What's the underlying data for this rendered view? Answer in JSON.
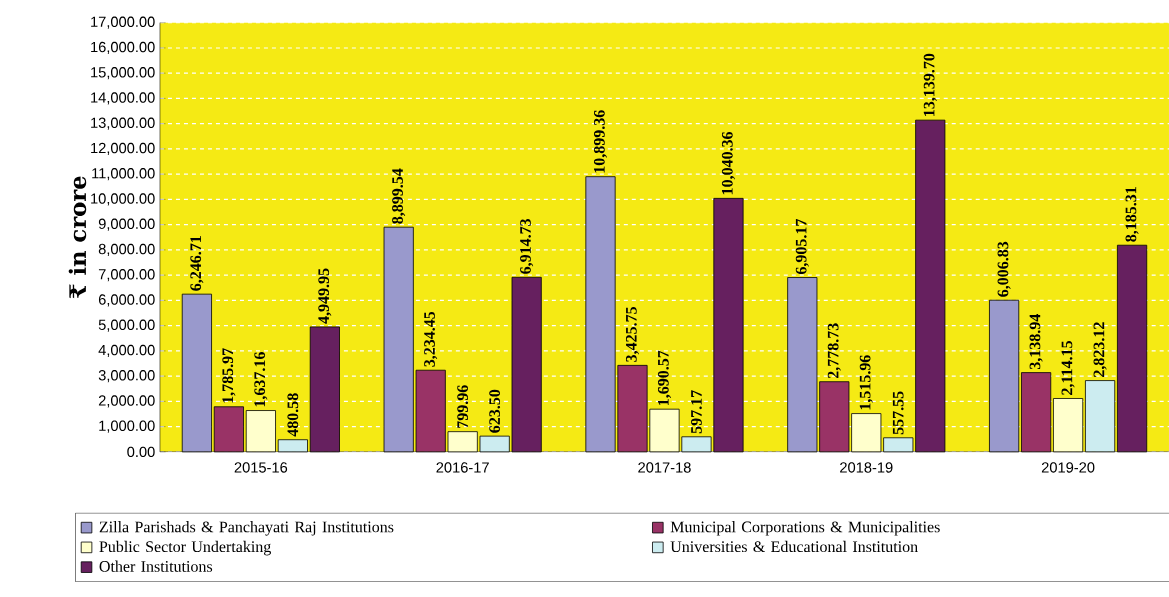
{
  "chart_data": {
    "type": "bar",
    "ylabel": "₹ in crore",
    "categories": [
      "2015-16",
      "2016-17",
      "2017-18",
      "2018-19",
      "2019-20"
    ],
    "series": [
      {
        "name": "Zilla Parishads & Panchayati Raj Institutions",
        "color": "#9999cc",
        "values": [
          6246.71,
          8899.54,
          10899.36,
          6905.17,
          6006.83
        ],
        "value_labels": [
          "6,246.71",
          "8,899.54",
          "10,899.36",
          "6,905.17",
          "6,006.83"
        ]
      },
      {
        "name": "Municipal Corporations & Municipalities",
        "color": "#993366",
        "values": [
          1785.97,
          3234.45,
          3425.75,
          2778.73,
          3138.94
        ],
        "value_labels": [
          "1,785.97",
          "3,234.45",
          "3,425.75",
          "2,778.73",
          "3,138.94"
        ]
      },
      {
        "name": "Public Sector Undertaking",
        "color": "#ffffcc",
        "values": [
          1637.16,
          799.96,
          1690.57,
          1515.96,
          2114.15
        ],
        "value_labels": [
          "1,637.16",
          "799.96",
          "1,690.57",
          "1,515.96",
          "2,114.15"
        ]
      },
      {
        "name": "Universities & Educational Institution",
        "color": "#ccecf0",
        "values": [
          480.58,
          623.5,
          597.17,
          557.55,
          2823.12
        ],
        "value_labels": [
          "480.58",
          "623.50",
          "597.17",
          "557.55",
          "2,823.12"
        ]
      },
      {
        "name": "Other Institutions",
        "color": "#66205f",
        "values": [
          4949.95,
          6914.73,
          10040.36,
          13139.7,
          8185.31
        ],
        "value_labels": [
          "4,949.95",
          "6,914.73",
          "10,040.36",
          "13,139.70",
          "8,185.31"
        ]
      }
    ],
    "ylim": [
      0,
      17000
    ],
    "yticks": [
      {
        "value": 0,
        "label": "0.00"
      },
      {
        "value": 1000,
        "label": "1,000.00"
      },
      {
        "value": 2000,
        "label": "2,000.00"
      },
      {
        "value": 3000,
        "label": "3,000.00"
      },
      {
        "value": 4000,
        "label": "4,000.00"
      },
      {
        "value": 5000,
        "label": "5,000.00"
      },
      {
        "value": 6000,
        "label": "6,000.00"
      },
      {
        "value": 7000,
        "label": "7,000.00"
      },
      {
        "value": 8000,
        "label": "8,000.00"
      },
      {
        "value": 9000,
        "label": "9,000.00"
      },
      {
        "value": 10000,
        "label": "10,000.00"
      },
      {
        "value": 11000,
        "label": "11,000.00"
      },
      {
        "value": 12000,
        "label": "12,000.00"
      },
      {
        "value": 13000,
        "label": "13,000.00"
      },
      {
        "value": 14000,
        "label": "14,000.00"
      },
      {
        "value": 15000,
        "label": "15,000.00"
      },
      {
        "value": 16000,
        "label": "16,000.00"
      },
      {
        "value": 17000,
        "label": "17,000.00"
      }
    ],
    "grid": "y",
    "legend": "bottom"
  }
}
